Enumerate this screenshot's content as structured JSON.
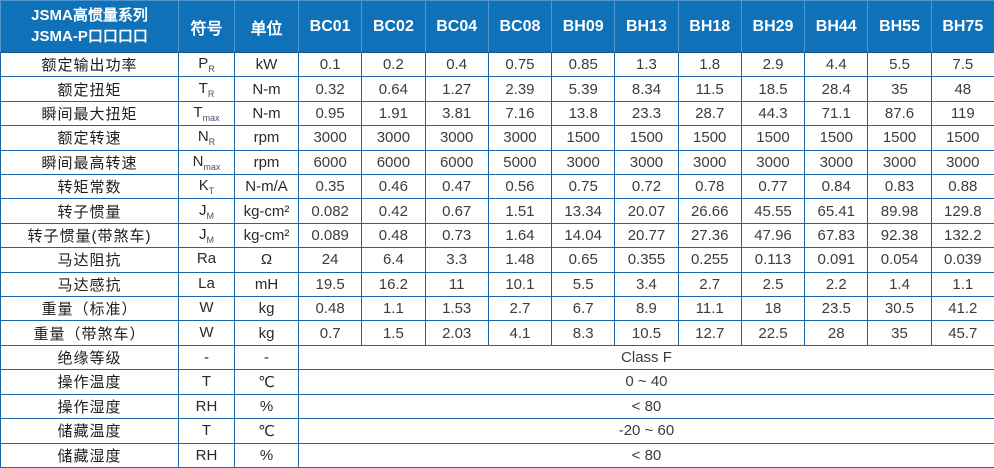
{
  "table": {
    "header": {
      "title_line1": "JSMA高惯量系列",
      "title_line2": "JSMA-P口口口口",
      "symbol_col": "符号",
      "unit_col": "单位",
      "models": [
        "BC01",
        "BC02",
        "BC04",
        "BC08",
        "BH09",
        "BH13",
        "BH18",
        "BH29",
        "BH44",
        "BH55",
        "BH75"
      ]
    },
    "spec_rows": [
      {
        "label": "额定输出功率",
        "symbol": "P",
        "symbol_sub": "R",
        "unit": "kW",
        "values": [
          "0.1",
          "0.2",
          "0.4",
          "0.75",
          "0.85",
          "1.3",
          "1.8",
          "2.9",
          "4.4",
          "5.5",
          "7.5"
        ]
      },
      {
        "label": "额定扭矩",
        "symbol": "T",
        "symbol_sub": "R",
        "unit": "N-m",
        "values": [
          "0.32",
          "0.64",
          "1.27",
          "2.39",
          "5.39",
          "8.34",
          "11.5",
          "18.5",
          "28.4",
          "35",
          "48"
        ]
      },
      {
        "label": "瞬间最大扭矩",
        "symbol": "T",
        "symbol_sub": "max",
        "unit": "N-m",
        "values": [
          "0.95",
          "1.91",
          "3.81",
          "7.16",
          "13.8",
          "23.3",
          "28.7",
          "44.3",
          "71.1",
          "87.6",
          "119"
        ]
      },
      {
        "label": "额定转速",
        "symbol": "N",
        "symbol_sub": "R",
        "unit": "rpm",
        "values": [
          "3000",
          "3000",
          "3000",
          "3000",
          "1500",
          "1500",
          "1500",
          "1500",
          "1500",
          "1500",
          "1500"
        ]
      },
      {
        "label": "瞬间最高转速",
        "symbol": "N",
        "symbol_sub": "max",
        "unit": "rpm",
        "values": [
          "6000",
          "6000",
          "6000",
          "5000",
          "3000",
          "3000",
          "3000",
          "3000",
          "3000",
          "3000",
          "3000"
        ]
      },
      {
        "label": "转矩常数",
        "symbol": "K",
        "symbol_sub": "T",
        "unit": "N-m/A",
        "values": [
          "0.35",
          "0.46",
          "0.47",
          "0.56",
          "0.75",
          "0.72",
          "0.78",
          "0.77",
          "0.84",
          "0.83",
          "0.88"
        ]
      },
      {
        "label": "转子惯量",
        "symbol": "J",
        "symbol_sub": "M",
        "unit": "kg-cm²",
        "values": [
          "0.082",
          "0.42",
          "0.67",
          "1.51",
          "13.34",
          "20.07",
          "26.66",
          "45.55",
          "65.41",
          "89.98",
          "129.8"
        ]
      },
      {
        "label": "转子惯量(带煞车)",
        "symbol": "J",
        "symbol_sub": "M",
        "unit": "kg-cm²",
        "values": [
          "0.089",
          "0.48",
          "0.73",
          "1.64",
          "14.04",
          "20.77",
          "27.36",
          "47.96",
          "67.83",
          "92.38",
          "132.2"
        ]
      },
      {
        "label": "马达阻抗",
        "symbol": "Ra",
        "symbol_sub": "",
        "unit": "Ω",
        "values": [
          "24",
          "6.4",
          "3.3",
          "1.48",
          "0.65",
          "0.355",
          "0.255",
          "0.113",
          "0.091",
          "0.054",
          "0.039"
        ]
      },
      {
        "label": "马达感抗",
        "symbol": "La",
        "symbol_sub": "",
        "unit": "mH",
        "values": [
          "19.5",
          "16.2",
          "11",
          "10.1",
          "5.5",
          "3.4",
          "2.7",
          "2.5",
          "2.2",
          "1.4",
          "1.1"
        ]
      },
      {
        "label": "重量（标准）",
        "symbol": "W",
        "symbol_sub": "",
        "unit": "kg",
        "values": [
          "0.48",
          "1.1",
          "1.53",
          "2.7",
          "6.7",
          "8.9",
          "11.1",
          "18",
          "23.5",
          "30.5",
          "41.2"
        ]
      },
      {
        "label": "重量（带煞车）",
        "symbol": "W",
        "symbol_sub": "",
        "unit": "kg",
        "values": [
          "0.7",
          "1.5",
          "2.03",
          "4.1",
          "8.3",
          "10.5",
          "12.7",
          "22.5",
          "28",
          "35",
          "45.7"
        ]
      }
    ],
    "env_rows": [
      {
        "label": "绝缘等级",
        "symbol": "-",
        "unit": "-",
        "value": "Class F"
      },
      {
        "label": "操作温度",
        "symbol": "T",
        "unit": "℃",
        "value": "0 ~ 40"
      },
      {
        "label": "操作湿度",
        "symbol": "RH",
        "unit": "%",
        "value": "< 80"
      },
      {
        "label": "储藏温度",
        "symbol": "T",
        "unit": "℃",
        "value": "-20 ~ 60"
      },
      {
        "label": "储藏湿度",
        "symbol": "RH",
        "unit": "%",
        "value": "< 80"
      }
    ],
    "colors": {
      "header_bg": "#0F71B8",
      "header_divider": "#4D97CE",
      "border": "#1B66A8",
      "header_text": "#FFFFFF",
      "body_text": "#3C3C3C"
    }
  }
}
